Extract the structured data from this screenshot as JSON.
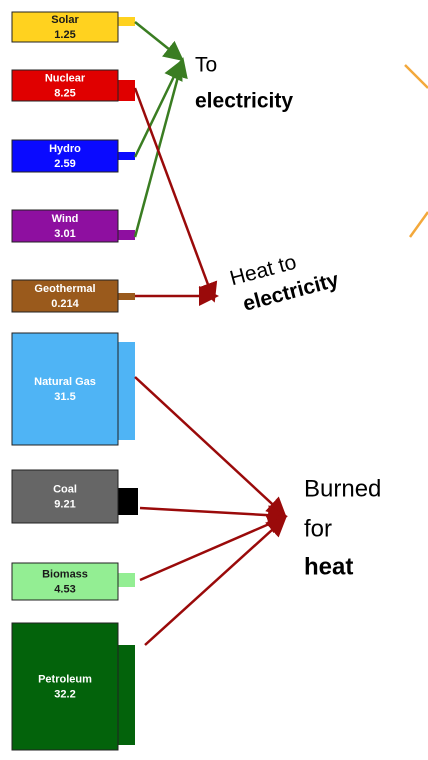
{
  "sources": [
    {
      "name": "Solar",
      "value": 1.25,
      "color": "#ffd21f",
      "text_color": "#1a1a1a"
    },
    {
      "name": "Nuclear",
      "value": 8.25,
      "color": "#e00000",
      "text_color": "#ffffff"
    },
    {
      "name": "Hydro",
      "value": 2.59,
      "color": "#0a0aff",
      "text_color": "#ffffff"
    },
    {
      "name": "Wind",
      "value": 3.01,
      "color": "#8e0fa0",
      "text_color": "#ffffff"
    },
    {
      "name": "Geothermal",
      "value": 0.214,
      "color": "#9a5a1c",
      "text_color": "#ffffff"
    },
    {
      "name": "Natural Gas",
      "value": 31.5,
      "color": "#4fb4f5",
      "text_color": "#ffffff"
    },
    {
      "name": "Coal",
      "value": 9.21,
      "color": "#666666",
      "text_color": "#ffffff"
    },
    {
      "name": "Biomass",
      "value": 4.53,
      "color": "#93ee93",
      "text_color": "#1a1a1a"
    },
    {
      "name": "Petroleum",
      "value": 32.2,
      "color": "#03630b",
      "text_color": "#ffffff"
    }
  ],
  "labels": {
    "to_electricity": [
      "To",
      "electricity"
    ],
    "heat_to_electricity": [
      "Heat to",
      "electricity"
    ],
    "burned_for_heat": [
      "Burned",
      "for",
      "heat"
    ]
  }
}
